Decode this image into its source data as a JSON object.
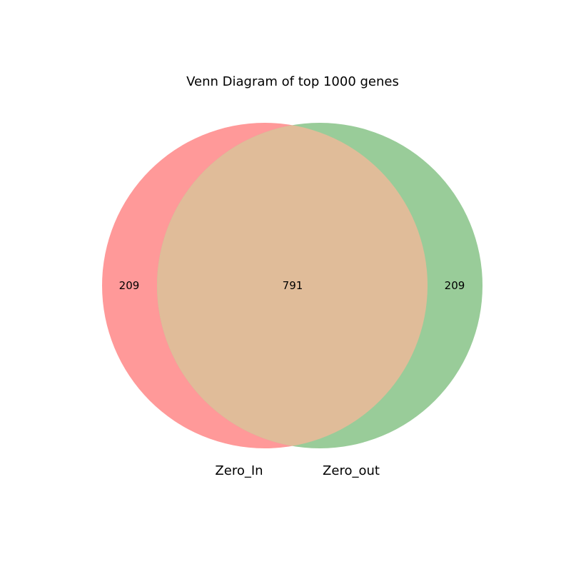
{
  "title": "Venn Diagram of top 1000 genes",
  "sets": [
    {
      "name": "Zero_In",
      "only_count": "209",
      "color": "#ff9999"
    },
    {
      "name": "Zero_out",
      "only_count": "209",
      "color": "#99cc99"
    }
  ],
  "intersection": {
    "count": "791",
    "color": "#e0bc99"
  }
}
